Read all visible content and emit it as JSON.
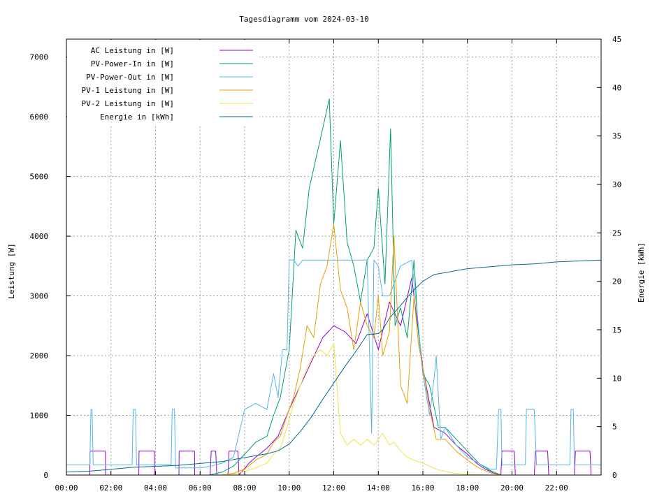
{
  "chart_data": {
    "type": "line",
    "title": "Tagesdiagramm vom 2024-03-10",
    "ylabel": "Leistung [W]",
    "y2label": "Energie [kWh]",
    "xlim": [
      0,
      24
    ],
    "ylim": [
      0,
      7300
    ],
    "y2lim": [
      0,
      45
    ],
    "x_ticks": [
      "00:00",
      "02:00",
      "04:00",
      "06:00",
      "08:00",
      "10:00",
      "12:00",
      "14:00",
      "16:00",
      "18:00",
      "20:00",
      "22:00"
    ],
    "y_ticks": [
      0,
      1000,
      2000,
      3000,
      4000,
      5000,
      6000,
      7000
    ],
    "y2_ticks": [
      0,
      5,
      10,
      15,
      20,
      25,
      30,
      35,
      40,
      45
    ],
    "grid": true,
    "legend_position": "top-left",
    "series": [
      {
        "name": "AC Leistung in [W]",
        "color": "#9400d3",
        "axis": "left",
        "x": [
          0,
          1.05,
          1.06,
          1.75,
          1.76,
          3.25,
          3.26,
          3.95,
          3.96,
          5.05,
          5.06,
          5.75,
          5.76,
          6.45,
          6.5,
          6.7,
          6.75,
          7.0,
          7.25,
          7.3,
          7.7,
          7.75,
          8.2,
          8.5,
          9.0,
          9.5,
          10.0,
          10.5,
          11.0,
          11.5,
          12.0,
          12.5,
          13.0,
          13.5,
          14.0,
          14.5,
          15.0,
          15.5,
          16.0,
          16.5,
          17.0,
          17.5,
          18.0,
          18.4,
          18.8,
          19.2,
          19.5,
          19.55,
          20.1,
          20.15,
          21.0,
          21.05,
          21.6,
          21.65,
          22.8,
          22.85,
          23.5,
          23.55,
          24
        ],
        "y": [
          0,
          0,
          400,
          400,
          0,
          0,
          400,
          400,
          0,
          0,
          400,
          400,
          0,
          0,
          400,
          400,
          0,
          0,
          0,
          400,
          400,
          0,
          200,
          300,
          450,
          650,
          1100,
          1500,
          1900,
          2300,
          2500,
          2400,
          2200,
          2700,
          2100,
          2900,
          2500,
          3300,
          1800,
          800,
          700,
          500,
          350,
          200,
          100,
          30,
          0,
          400,
          400,
          0,
          0,
          400,
          400,
          0,
          0,
          400,
          400,
          0,
          0
        ]
      },
      {
        "name": "PV-Power-In in [W]",
        "color": "#009e73",
        "axis": "left",
        "x": [
          0,
          6.4,
          7.0,
          7.5,
          8.0,
          8.5,
          9.0,
          9.3,
          9.6,
          9.8,
          10.0,
          10.3,
          10.6,
          10.9,
          11.2,
          11.5,
          11.8,
          12.0,
          12.3,
          12.6,
          12.9,
          13.2,
          13.5,
          13.8,
          14.0,
          14.3,
          14.55,
          14.75,
          15.0,
          15.3,
          15.6,
          15.8,
          16.0,
          16.3,
          16.7,
          17.0,
          17.5,
          18.0,
          18.5,
          19.0,
          19.5,
          24
        ],
        "y": [
          0,
          0,
          50,
          150,
          350,
          550,
          650,
          1000,
          1300,
          1700,
          2100,
          4100,
          3800,
          4800,
          5300,
          5800,
          6300,
          4200,
          5600,
          3900,
          3500,
          2900,
          3600,
          3800,
          4800,
          3200,
          5800,
          2500,
          2800,
          2300,
          3600,
          2400,
          1700,
          1500,
          800,
          800,
          600,
          400,
          200,
          80,
          0,
          0
        ]
      },
      {
        "name": "PV-Power-Out in [W]",
        "color": "#56b4e9",
        "axis": "left",
        "x": [
          0,
          1.05,
          1.1,
          1.15,
          1.2,
          2.95,
          3.0,
          3.1,
          3.15,
          4.7,
          4.75,
          4.85,
          4.9,
          6.0,
          6.5,
          7.0,
          7.5,
          8.0,
          8.5,
          9.0,
          9.3,
          9.5,
          9.7,
          9.9,
          10.0,
          10.2,
          10.4,
          10.6,
          10.8,
          11.0,
          11.5,
          12.0,
          12.5,
          13.0,
          13.5,
          13.7,
          13.8,
          14.0,
          14.2,
          14.5,
          15.0,
          15.5,
          15.8,
          16.0,
          16.3,
          16.5,
          16.6,
          16.8,
          17.0,
          17.5,
          18.0,
          18.5,
          19.0,
          19.3,
          19.4,
          19.5,
          19.55,
          20.0,
          20.6,
          20.65,
          21.0,
          21.1,
          21.15,
          22.6,
          22.65,
          22.75,
          22.8,
          24
        ],
        "y": [
          170,
          170,
          1100,
          1100,
          170,
          170,
          1100,
          1100,
          170,
          170,
          1100,
          1100,
          120,
          120,
          150,
          200,
          300,
          1100,
          1200,
          1100,
          1700,
          1300,
          2100,
          2100,
          3600,
          3600,
          3500,
          3600,
          3600,
          3600,
          3600,
          3600,
          3600,
          3600,
          3600,
          700,
          3600,
          3500,
          3000,
          3000,
          3500,
          3600,
          2500,
          1700,
          1000,
          1600,
          2000,
          600,
          800,
          500,
          300,
          200,
          100,
          100,
          1100,
          1100,
          170,
          170,
          170,
          1100,
          1100,
          170,
          170,
          170,
          1100,
          1100,
          170,
          170
        ]
      },
      {
        "name": "PV-1 Leistung in [W]",
        "color": "#e69f00",
        "axis": "left",
        "x": [
          0,
          7.0,
          7.5,
          8.0,
          8.5,
          9.0,
          9.3,
          9.6,
          9.9,
          10.2,
          10.5,
          10.8,
          11.1,
          11.4,
          11.7,
          12.0,
          12.3,
          12.6,
          12.9,
          13.2,
          13.5,
          13.8,
          14.0,
          14.2,
          14.5,
          14.7,
          15.0,
          15.3,
          15.6,
          15.8,
          16.0,
          16.3,
          16.6,
          17.0,
          17.5,
          18.0,
          18.5,
          19.0,
          19.5,
          24
        ],
        "y": [
          0,
          0,
          30,
          100,
          250,
          350,
          550,
          650,
          1000,
          1300,
          1800,
          2500,
          2300,
          3200,
          3500,
          4200,
          3100,
          2800,
          2100,
          2900,
          2500,
          2300,
          3000,
          2000,
          2400,
          4000,
          1500,
          1200,
          3000,
          2200,
          1800,
          1100,
          600,
          600,
          400,
          250,
          120,
          40,
          0,
          0
        ]
      },
      {
        "name": "PV-2 Leistung in [W]",
        "color": "#f0e442",
        "axis": "left",
        "x": [
          0,
          7.0,
          7.5,
          8.0,
          8.5,
          9.0,
          9.3,
          9.6,
          9.9,
          10.2,
          10.5,
          10.8,
          11.1,
          11.4,
          11.7,
          12.0,
          12.3,
          12.6,
          12.9,
          13.2,
          13.5,
          13.8,
          14.0,
          14.2,
          14.5,
          14.7,
          15.0,
          15.3,
          15.6,
          15.8,
          16.0,
          16.3,
          16.6,
          17.0,
          17.5,
          18.0,
          19.0,
          24
        ],
        "y": [
          0,
          0,
          20,
          60,
          120,
          200,
          350,
          450,
          800,
          1200,
          1500,
          1800,
          2000,
          2100,
          2000,
          2200,
          700,
          500,
          600,
          500,
          600,
          500,
          600,
          700,
          500,
          550,
          400,
          300,
          250,
          220,
          200,
          150,
          100,
          60,
          30,
          10,
          0,
          0
        ]
      },
      {
        "name": "Energie in [kWh]",
        "color": "#006d8f",
        "axis": "right",
        "x": [
          0,
          1,
          2,
          3,
          4,
          5,
          6,
          7,
          8,
          8.5,
          9,
          9.5,
          10,
          10.5,
          11,
          11.5,
          12,
          12.5,
          13,
          13.5,
          14,
          14.2,
          14.5,
          15,
          15.5,
          16,
          16.5,
          17,
          17.5,
          18,
          19,
          20,
          21,
          22,
          23,
          24
        ],
        "y": [
          0.3,
          0.4,
          0.6,
          0.8,
          0.9,
          1.0,
          1.2,
          1.4,
          1.8,
          2.0,
          2.2,
          2.5,
          3.2,
          4.5,
          6.0,
          7.8,
          9.5,
          11.2,
          12.8,
          14.5,
          14.6,
          15.0,
          16.2,
          17.5,
          18.9,
          20.0,
          20.7,
          20.9,
          21.1,
          21.3,
          21.5,
          21.7,
          21.8,
          22.0,
          22.1,
          22.2
        ]
      }
    ]
  }
}
